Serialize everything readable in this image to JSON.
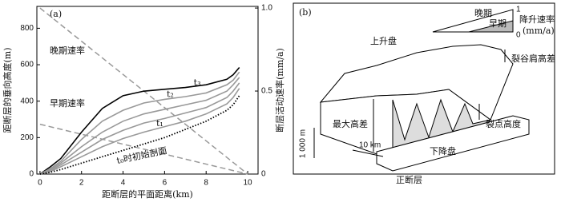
{
  "chart_data": {
    "type": "line",
    "panel_label": "(a)",
    "x_label": "距断层的平面距离(km)",
    "y_label": "距断层的垂向高度(m)",
    "y2_label": "断层活动速率(mm/a)",
    "xlim": [
      -0.15,
      10.5
    ],
    "xticks": [
      0,
      2,
      4,
      6,
      8,
      10
    ],
    "ylim": [
      0,
      920
    ],
    "yticks": [
      0,
      200,
      400,
      600,
      800
    ],
    "y2lim": [
      0,
      1.01
    ],
    "y2ticks": [
      0,
      0.5,
      {
        "value": 1,
        "label": "1.0"
      }
    ],
    "x": [
      0,
      0.5,
      1,
      2,
      3,
      4,
      5,
      6,
      7,
      8,
      9,
      9.3,
      9.6
    ],
    "series": [
      {
        "name": "t₃",
        "color": "#000000",
        "style": "solid",
        "values": [
          0,
          40,
          85,
          230,
          360,
          430,
          455,
          465,
          475,
          490,
          520,
          545,
          585
        ]
      },
      {
        "name": "t₂",
        "color": "#999999",
        "style": "solid",
        "values": [
          0,
          30,
          70,
          190,
          290,
          350,
          390,
          410,
          425,
          445,
          490,
          515,
          560
        ]
      },
      {
        "color": "#999999",
        "style": "solid",
        "values": [
          0,
          25,
          60,
          150,
          230,
          290,
          330,
          355,
          380,
          405,
          455,
          490,
          530
        ]
      },
      {
        "name": "t₁",
        "color": "#999999",
        "style": "solid",
        "values": [
          0,
          20,
          50,
          120,
          190,
          240,
          280,
          305,
          335,
          365,
          420,
          455,
          500
        ]
      },
      {
        "color": "#999999",
        "style": "solid",
        "values": [
          0,
          15,
          40,
          95,
          150,
          195,
          230,
          260,
          290,
          330,
          385,
          420,
          470
        ]
      },
      {
        "name": "t₀时初始剖面",
        "color": "#000000",
        "style": "dotted",
        "values": [
          0,
          10,
          25,
          60,
          95,
          130,
          165,
          200,
          245,
          290,
          350,
          380,
          430
        ]
      }
    ],
    "rate_x": [
      0,
      10
    ],
    "rates": [
      {
        "name": "晚期速率",
        "color": "#999999",
        "axis": "y2",
        "values": [
          1,
          0
        ]
      },
      {
        "name": "早期速率",
        "color": "#999999",
        "axis": "y2",
        "values": [
          0.3,
          0
        ]
      }
    ]
  },
  "diagram": {
    "panel_label": "(b)",
    "labels": [
      "晚期",
      "早期",
      "1",
      "0",
      "降升速率",
      "(mm/a)",
      "上升盘",
      "裂谷肩高差",
      "裂点高度",
      "最大高差",
      "1 000 m",
      "10 km",
      "下降盘",
      "正断层"
    ]
  }
}
